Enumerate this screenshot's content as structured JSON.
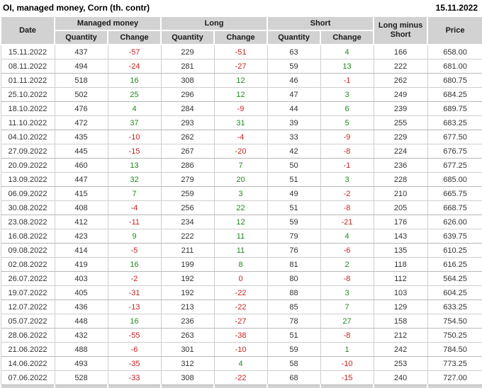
{
  "header": {
    "title": "OI, managed money, Corn (th. contr)",
    "date": "15.11.2022"
  },
  "colors": {
    "positive": "#1e8b1e",
    "negative": "#cc2222",
    "header_bg": "#d2d2d2"
  },
  "table": {
    "columns": {
      "date": "Date",
      "managed_money": "Managed money",
      "long": "Long",
      "short": "Short",
      "quantity": "Quantity",
      "change": "Change",
      "long_minus_short": "Long minus Short",
      "price": "Price"
    },
    "rows": [
      {
        "date": "15.11.2022",
        "mm_q": 437,
        "mm_c": -57,
        "long_q": 229,
        "long_c": -51,
        "short_q": 63,
        "short_c": 4,
        "lms": 166,
        "price": "658.00"
      },
      {
        "date": "08.11.2022",
        "mm_q": 494,
        "mm_c": -24,
        "long_q": 281,
        "long_c": -27,
        "short_q": 59,
        "short_c": 13,
        "lms": 222,
        "price": "681.00"
      },
      {
        "date": "01.11.2022",
        "mm_q": 518,
        "mm_c": 16,
        "long_q": 308,
        "long_c": 12,
        "short_q": 46,
        "short_c": -1,
        "lms": 262,
        "price": "680.75"
      },
      {
        "date": "25.10.2022",
        "mm_q": 502,
        "mm_c": 25,
        "long_q": 296,
        "long_c": 12,
        "short_q": 47,
        "short_c": 3,
        "lms": 249,
        "price": "684.25"
      },
      {
        "date": "18.10.2022",
        "mm_q": 476,
        "mm_c": 4,
        "long_q": 284,
        "long_c": -9,
        "short_q": 44,
        "short_c": 6,
        "lms": 239,
        "price": "689.75"
      },
      {
        "date": "11.10.2022",
        "mm_q": 472,
        "mm_c": 37,
        "long_q": 293,
        "long_c": 31,
        "short_q": 39,
        "short_c": 5,
        "lms": 255,
        "price": "683.25"
      },
      {
        "date": "04.10.2022",
        "mm_q": 435,
        "mm_c": -10,
        "long_q": 262,
        "long_c": -4,
        "short_q": 33,
        "short_c": -9,
        "lms": 229,
        "price": "677.50"
      },
      {
        "date": "27.09.2022",
        "mm_q": 445,
        "mm_c": -15,
        "long_q": 267,
        "long_c": -20,
        "short_q": 42,
        "short_c": -8,
        "lms": 224,
        "price": "676.75"
      },
      {
        "date": "20.09.2022",
        "mm_q": 460,
        "mm_c": 13,
        "long_q": 286,
        "long_c": 7,
        "short_q": 50,
        "short_c": -1,
        "lms": 236,
        "price": "677.25"
      },
      {
        "date": "13.09.2022",
        "mm_q": 447,
        "mm_c": 32,
        "long_q": 279,
        "long_c": 20,
        "short_q": 51,
        "short_c": 3,
        "lms": 228,
        "price": "685.00"
      },
      {
        "date": "06.09.2022",
        "mm_q": 415,
        "mm_c": 7,
        "long_q": 259,
        "long_c": 3,
        "short_q": 49,
        "short_c": -2,
        "lms": 210,
        "price": "665.75"
      },
      {
        "date": "30.08.2022",
        "mm_q": 408,
        "mm_c": -4,
        "long_q": 256,
        "long_c": 22,
        "short_q": 51,
        "short_c": -8,
        "lms": 205,
        "price": "668.75"
      },
      {
        "date": "23.08.2022",
        "mm_q": 412,
        "mm_c": -11,
        "long_q": 234,
        "long_c": 12,
        "short_q": 59,
        "short_c": -21,
        "lms": 176,
        "price": "626.00"
      },
      {
        "date": "16.08.2022",
        "mm_q": 423,
        "mm_c": 9,
        "long_q": 222,
        "long_c": 11,
        "short_q": 79,
        "short_c": 4,
        "lms": 143,
        "price": "639.75"
      },
      {
        "date": "09.08.2022",
        "mm_q": 414,
        "mm_c": -5,
        "long_q": 211,
        "long_c": 11,
        "short_q": 76,
        "short_c": -6,
        "lms": 135,
        "price": "610.25"
      },
      {
        "date": "02.08.2022",
        "mm_q": 419,
        "mm_c": 16,
        "long_q": 199,
        "long_c": 8,
        "short_q": 81,
        "short_c": 2,
        "lms": 118,
        "price": "616.25"
      },
      {
        "date": "26.07.2022",
        "mm_q": 403,
        "mm_c": -2,
        "long_q": 192,
        "long_c": 0,
        "short_q": 80,
        "short_c": -8,
        "lms": 112,
        "price": "564.25"
      },
      {
        "date": "19.07.2022",
        "mm_q": 405,
        "mm_c": -31,
        "long_q": 192,
        "long_c": -22,
        "short_q": 88,
        "short_c": 3,
        "lms": 103,
        "price": "604.25"
      },
      {
        "date": "12.07.2022",
        "mm_q": 436,
        "mm_c": -13,
        "long_q": 213,
        "long_c": -22,
        "short_q": 85,
        "short_c": 7,
        "lms": 129,
        "price": "633.25"
      },
      {
        "date": "05.07.2022",
        "mm_q": 448,
        "mm_c": 16,
        "long_q": 236,
        "long_c": -27,
        "short_q": 78,
        "short_c": 27,
        "lms": 158,
        "price": "754.50"
      },
      {
        "date": "28.06.2022",
        "mm_q": 432,
        "mm_c": -55,
        "long_q": 263,
        "long_c": -38,
        "short_q": 51,
        "short_c": -8,
        "lms": 212,
        "price": "750.25"
      },
      {
        "date": "21.06.2022",
        "mm_q": 488,
        "mm_c": -6,
        "long_q": 301,
        "long_c": -10,
        "short_q": 59,
        "short_c": 1,
        "lms": 242,
        "price": "784.50"
      },
      {
        "date": "14.06.2022",
        "mm_q": 493,
        "mm_c": -35,
        "long_q": 312,
        "long_c": 4,
        "short_q": 58,
        "short_c": -10,
        "lms": 253,
        "price": "773.25"
      },
      {
        "date": "07.06.2022",
        "mm_q": 528,
        "mm_c": -33,
        "long_q": 308,
        "long_c": -22,
        "short_q": 68,
        "short_c": -15,
        "lms": 240,
        "price": "727.00"
      }
    ]
  }
}
